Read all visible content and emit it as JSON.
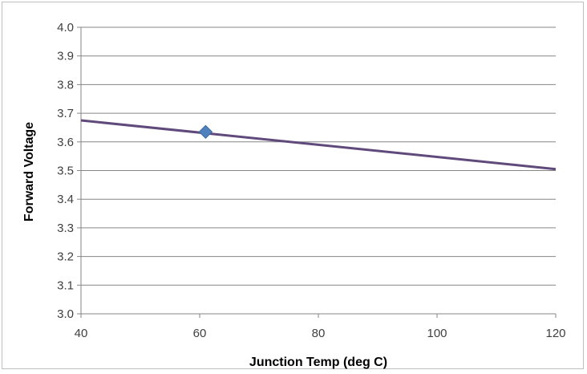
{
  "chart_data": {
    "type": "scatter",
    "title": "",
    "xlabel": "Junction Temp (deg C)",
    "ylabel": "Forward Voltage",
    "xlim": [
      40,
      120
    ],
    "ylim": [
      3.0,
      4.0
    ],
    "x_ticks": [
      "40",
      "60",
      "80",
      "100",
      "120"
    ],
    "y_ticks": [
      "3.0",
      "3.1",
      "3.2",
      "3.3",
      "3.4",
      "3.5",
      "3.6",
      "3.7",
      "3.8",
      "3.9",
      "4.0"
    ],
    "grid": "horizontal",
    "series": [
      {
        "kind": "marker",
        "marker": "diamond",
        "color": "#4f81bd",
        "points": [
          {
            "x": 61,
            "y": 3.635
          }
        ]
      },
      {
        "kind": "line",
        "color": "#604a7b",
        "points": [
          {
            "x": 40,
            "y": 3.675
          },
          {
            "x": 120,
            "y": 3.505
          }
        ]
      }
    ]
  }
}
